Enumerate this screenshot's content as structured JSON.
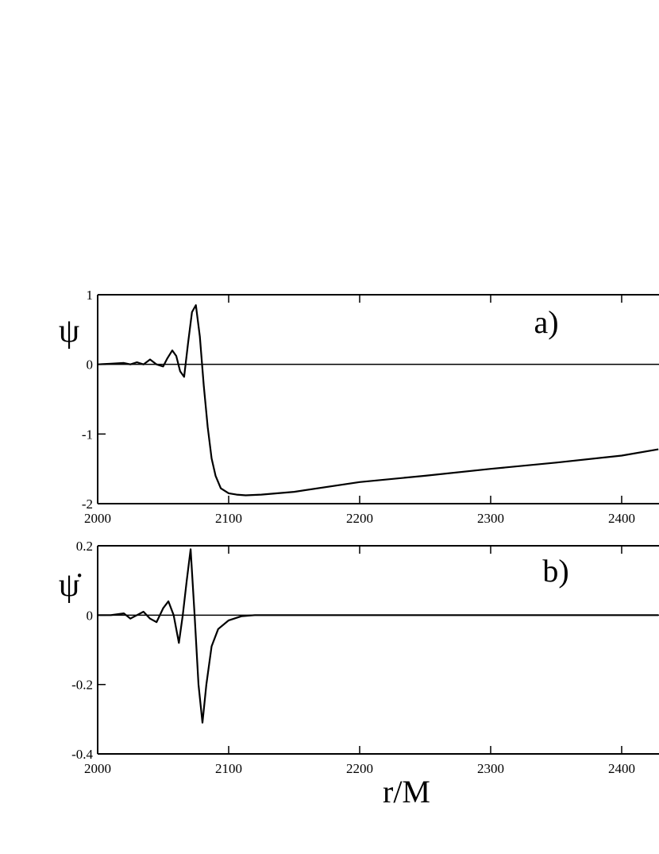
{
  "chart_data": [
    {
      "type": "line",
      "y_label": "ψ",
      "annotation": "a)",
      "x": [
        2000,
        2010,
        2020,
        2025,
        2030,
        2035,
        2040,
        2045,
        2050,
        2053,
        2057,
        2060,
        2063,
        2066,
        2069,
        2072,
        2075,
        2078,
        2081,
        2084,
        2087,
        2090,
        2094,
        2100,
        2106,
        2113,
        2125,
        2150,
        2200,
        2250,
        2300,
        2350,
        2400,
        2428
      ],
      "values": [
        0,
        0.01,
        0.02,
        0.0,
        0.03,
        0.0,
        0.07,
        0.0,
        -0.03,
        0.08,
        0.2,
        0.12,
        -0.1,
        -0.18,
        0.3,
        0.75,
        0.85,
        0.4,
        -0.3,
        -0.9,
        -1.35,
        -1.6,
        -1.78,
        -1.85,
        -1.87,
        -1.88,
        -1.87,
        -1.83,
        -1.69,
        -1.6,
        -1.5,
        -1.41,
        -1.31,
        -1.22
      ],
      "color": "#000000",
      "xlim": [
        2000,
        2428.5
      ],
      "xticks": [
        2000,
        2100,
        2200,
        2300,
        2400
      ],
      "ylim": [
        -2,
        1
      ],
      "yticks": [
        -2,
        -1,
        0,
        1
      ],
      "zero_line": true
    },
    {
      "type": "line",
      "y_label": "ψ̇",
      "annotation": "b)",
      "x_label": "r/M",
      "x": [
        2000,
        2010,
        2020,
        2025,
        2030,
        2035,
        2040,
        2045,
        2050,
        2054,
        2058,
        2062,
        2065,
        2068,
        2071,
        2074,
        2077,
        2080,
        2083,
        2087,
        2092,
        2100,
        2110,
        2120,
        2200,
        2300,
        2428
      ],
      "values": [
        0,
        0.0,
        0.005,
        -0.01,
        0.0,
        0.01,
        -0.01,
        -0.02,
        0.02,
        0.04,
        0.0,
        -0.08,
        0.0,
        0.1,
        0.19,
        0.0,
        -0.2,
        -0.31,
        -0.2,
        -0.09,
        -0.04,
        -0.015,
        -0.003,
        0,
        0,
        0,
        0
      ],
      "color": "#000000",
      "xlim": [
        2000,
        2428.5
      ],
      "xticks": [
        2000,
        2100,
        2200,
        2300,
        2400
      ],
      "ylim": [
        -0.4,
        0.2
      ],
      "yticks": [
        -0.4,
        -0.2,
        0,
        0.2
      ],
      "zero_line": true
    }
  ]
}
